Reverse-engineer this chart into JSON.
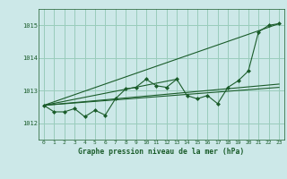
{
  "title": "Graphe pression niveau de la mer (hPa)",
  "bg_color": "#cce8e8",
  "grid_color": "#99ccbb",
  "line_color": "#1a5c2a",
  "text_color": "#1a5c2a",
  "xlim": [
    -0.5,
    23.5
  ],
  "ylim": [
    1011.5,
    1015.5
  ],
  "yticks": [
    1012,
    1013,
    1014,
    1015
  ],
  "xticks": [
    0,
    1,
    2,
    3,
    4,
    5,
    6,
    7,
    8,
    9,
    10,
    11,
    12,
    13,
    14,
    15,
    16,
    17,
    18,
    19,
    20,
    21,
    22,
    23
  ],
  "main_line": [
    1012.55,
    1012.35,
    1012.35,
    1012.45,
    1012.2,
    1012.4,
    1012.25,
    1012.75,
    1013.05,
    1013.1,
    1013.35,
    1013.15,
    1013.1,
    1013.35,
    1012.85,
    1012.75,
    1012.85,
    1012.6,
    1013.1,
    1013.3,
    1013.6,
    1014.8,
    1015.0,
    1015.05
  ],
  "trend_line1_x": [
    0,
    23
  ],
  "trend_line1_y": [
    1012.55,
    1013.1
  ],
  "trend_line2_x": [
    0,
    23
  ],
  "trend_line2_y": [
    1012.55,
    1013.2
  ],
  "trend_line3_x": [
    0,
    23
  ],
  "trend_line3_y": [
    1012.55,
    1015.05
  ],
  "trend_line4_x": [
    0,
    13
  ],
  "trend_line4_y": [
    1012.55,
    1013.35
  ]
}
